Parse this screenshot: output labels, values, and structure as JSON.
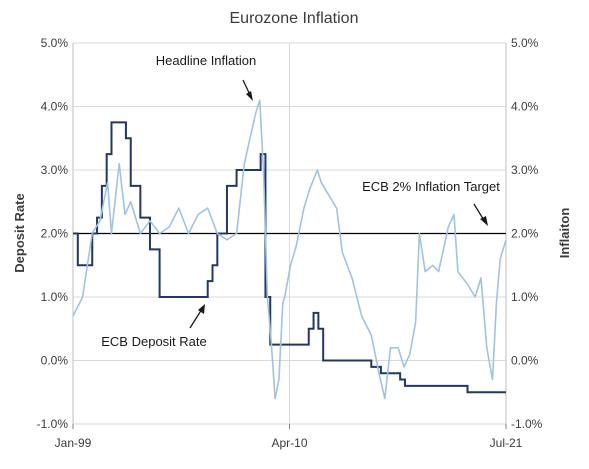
{
  "chart_data": {
    "type": "line",
    "title": "Eurozone Inflation",
    "ylabel_left": "Deposit  Rate",
    "ylabel_right": "Inflaiton",
    "ylim": [
      -1.0,
      5.0
    ],
    "y_ticks": [
      "-1.0%",
      "0.0%",
      "1.0%",
      "2.0%",
      "3.0%",
      "4.0%",
      "5.0%"
    ],
    "x_ticks": [
      "Jan-99",
      "Apr-10",
      "Jul-21"
    ],
    "grid": true,
    "colors": {
      "deposit": "#1f3864",
      "inflation": "#9dc3e6",
      "target": "#000000",
      "grid": "#d9d9d9"
    },
    "series": [
      {
        "key": "deposit",
        "x": [
          1999.0,
          1999.25,
          1999.5,
          1999.75,
          2000.0,
          2000.25,
          2000.5,
          2000.75,
          2001.0,
          2001.5,
          2001.75,
          2002.0,
          2002.5,
          2002.9,
          2003.0,
          2003.25,
          2003.5,
          2004.0,
          2005.0,
          2005.9,
          2006.0,
          2006.25,
          2006.5,
          2006.75,
          2007.0,
          2007.5,
          2008.0,
          2008.5,
          2008.75,
          2008.9,
          2009.0,
          2009.25,
          2009.5,
          2010.0,
          2011.0,
          2011.25,
          2011.5,
          2011.75,
          2012.0,
          2012.5,
          2013.0,
          2014.0,
          2014.5,
          2014.75,
          2015.0,
          2015.5,
          2016.0,
          2016.25,
          2017.0,
          2018.0,
          2019.0,
          2019.5,
          2019.75,
          2020.0,
          2021.0,
          2021.5
        ],
        "values": [
          2.0,
          1.5,
          1.5,
          1.5,
          2.0,
          2.25,
          2.75,
          3.25,
          3.75,
          3.75,
          3.5,
          2.75,
          2.25,
          2.25,
          1.75,
          1.75,
          1.0,
          1.0,
          1.0,
          1.0,
          1.25,
          1.5,
          2.0,
          2.0,
          2.75,
          3.0,
          3.0,
          3.0,
          3.25,
          3.25,
          1.0,
          0.25,
          0.25,
          0.25,
          0.25,
          0.5,
          0.75,
          0.5,
          0.0,
          0.0,
          0.0,
          0.0,
          -0.1,
          -0.1,
          -0.2,
          -0.2,
          -0.3,
          -0.4,
          -0.4,
          -0.4,
          -0.4,
          -0.5,
          -0.5,
          -0.5,
          -0.5,
          -0.5
        ]
      },
      {
        "key": "inflation",
        "name": "Headline Inflation",
        "x": [
          1999.0,
          1999.5,
          2000.0,
          2000.4,
          2000.8,
          2001.0,
          2001.4,
          2001.7,
          2002.0,
          2002.5,
          2003.0,
          2003.5,
          2004.0,
          2004.5,
          2005.0,
          2005.5,
          2006.0,
          2006.5,
          2007.0,
          2007.5,
          2007.9,
          2008.2,
          2008.5,
          2008.7,
          2008.9,
          2009.1,
          2009.3,
          2009.5,
          2009.7,
          2009.9,
          2010.0,
          2010.3,
          2010.6,
          2011.0,
          2011.3,
          2011.7,
          2011.9,
          2012.3,
          2012.7,
          2013.0,
          2013.5,
          2014.0,
          2014.5,
          2014.9,
          2015.2,
          2015.5,
          2015.9,
          2016.2,
          2016.5,
          2016.8,
          2017.0,
          2017.3,
          2017.7,
          2018.0,
          2018.5,
          2018.8,
          2019.0,
          2019.5,
          2019.9,
          2020.2,
          2020.5,
          2020.8,
          2021.0,
          2021.2,
          2021.5
        ],
        "values": [
          0.7,
          1.0,
          2.0,
          2.2,
          2.8,
          2.0,
          3.1,
          2.3,
          2.5,
          2.0,
          2.2,
          2.0,
          2.1,
          2.4,
          2.0,
          2.3,
          2.4,
          2.0,
          1.9,
          2.0,
          3.1,
          3.5,
          3.9,
          4.1,
          3.0,
          1.0,
          0.3,
          -0.6,
          -0.3,
          0.9,
          1.0,
          1.5,
          1.8,
          2.4,
          2.7,
          3.0,
          2.8,
          2.6,
          2.4,
          1.7,
          1.3,
          0.7,
          0.4,
          -0.2,
          -0.6,
          0.2,
          0.2,
          -0.1,
          0.1,
          0.6,
          2.0,
          1.4,
          1.5,
          1.4,
          2.1,
          2.3,
          1.4,
          1.2,
          1.0,
          1.3,
          0.2,
          -0.3,
          0.9,
          1.6,
          1.9
        ]
      },
      {
        "key": "target",
        "x": [
          1999.0,
          2021.5
        ],
        "values": [
          2.0,
          2.0
        ]
      }
    ],
    "annotations": [
      {
        "key": "headline",
        "text": "Headline Inflation"
      },
      {
        "key": "target",
        "text": "ECB 2% Inflation Target"
      },
      {
        "key": "deposit",
        "text": "ECB Deposit Rate"
      }
    ]
  }
}
